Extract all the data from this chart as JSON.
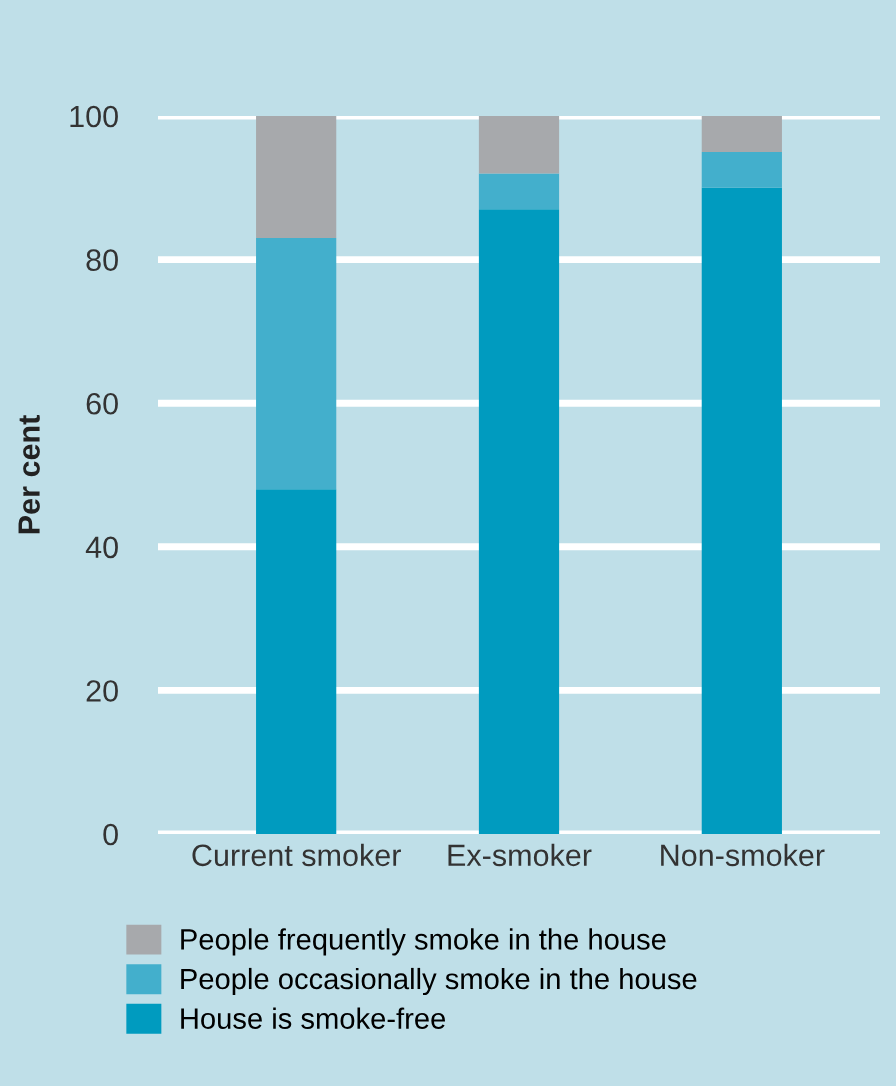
{
  "chart_data": {
    "type": "bar",
    "stacked": true,
    "ylabel": "Per cent",
    "categories": [
      "Current smoker",
      "Ex-smoker",
      "Non-smoker"
    ],
    "series": [
      {
        "name": "House is smoke-free",
        "color": "#009bbf",
        "values": [
          48,
          87,
          90
        ]
      },
      {
        "name": "People occasionally smoke in the house",
        "color": "#43afcc",
        "values": [
          35,
          5,
          5
        ]
      },
      {
        "name": "People frequently smoke in the house",
        "color": "#a7a9ac",
        "values": [
          17,
          8,
          5
        ]
      }
    ],
    "ylim": [
      0,
      100
    ],
    "yticks": [
      0,
      20,
      40,
      60,
      80,
      100
    ],
    "grid": "y",
    "legend": "bottom"
  }
}
